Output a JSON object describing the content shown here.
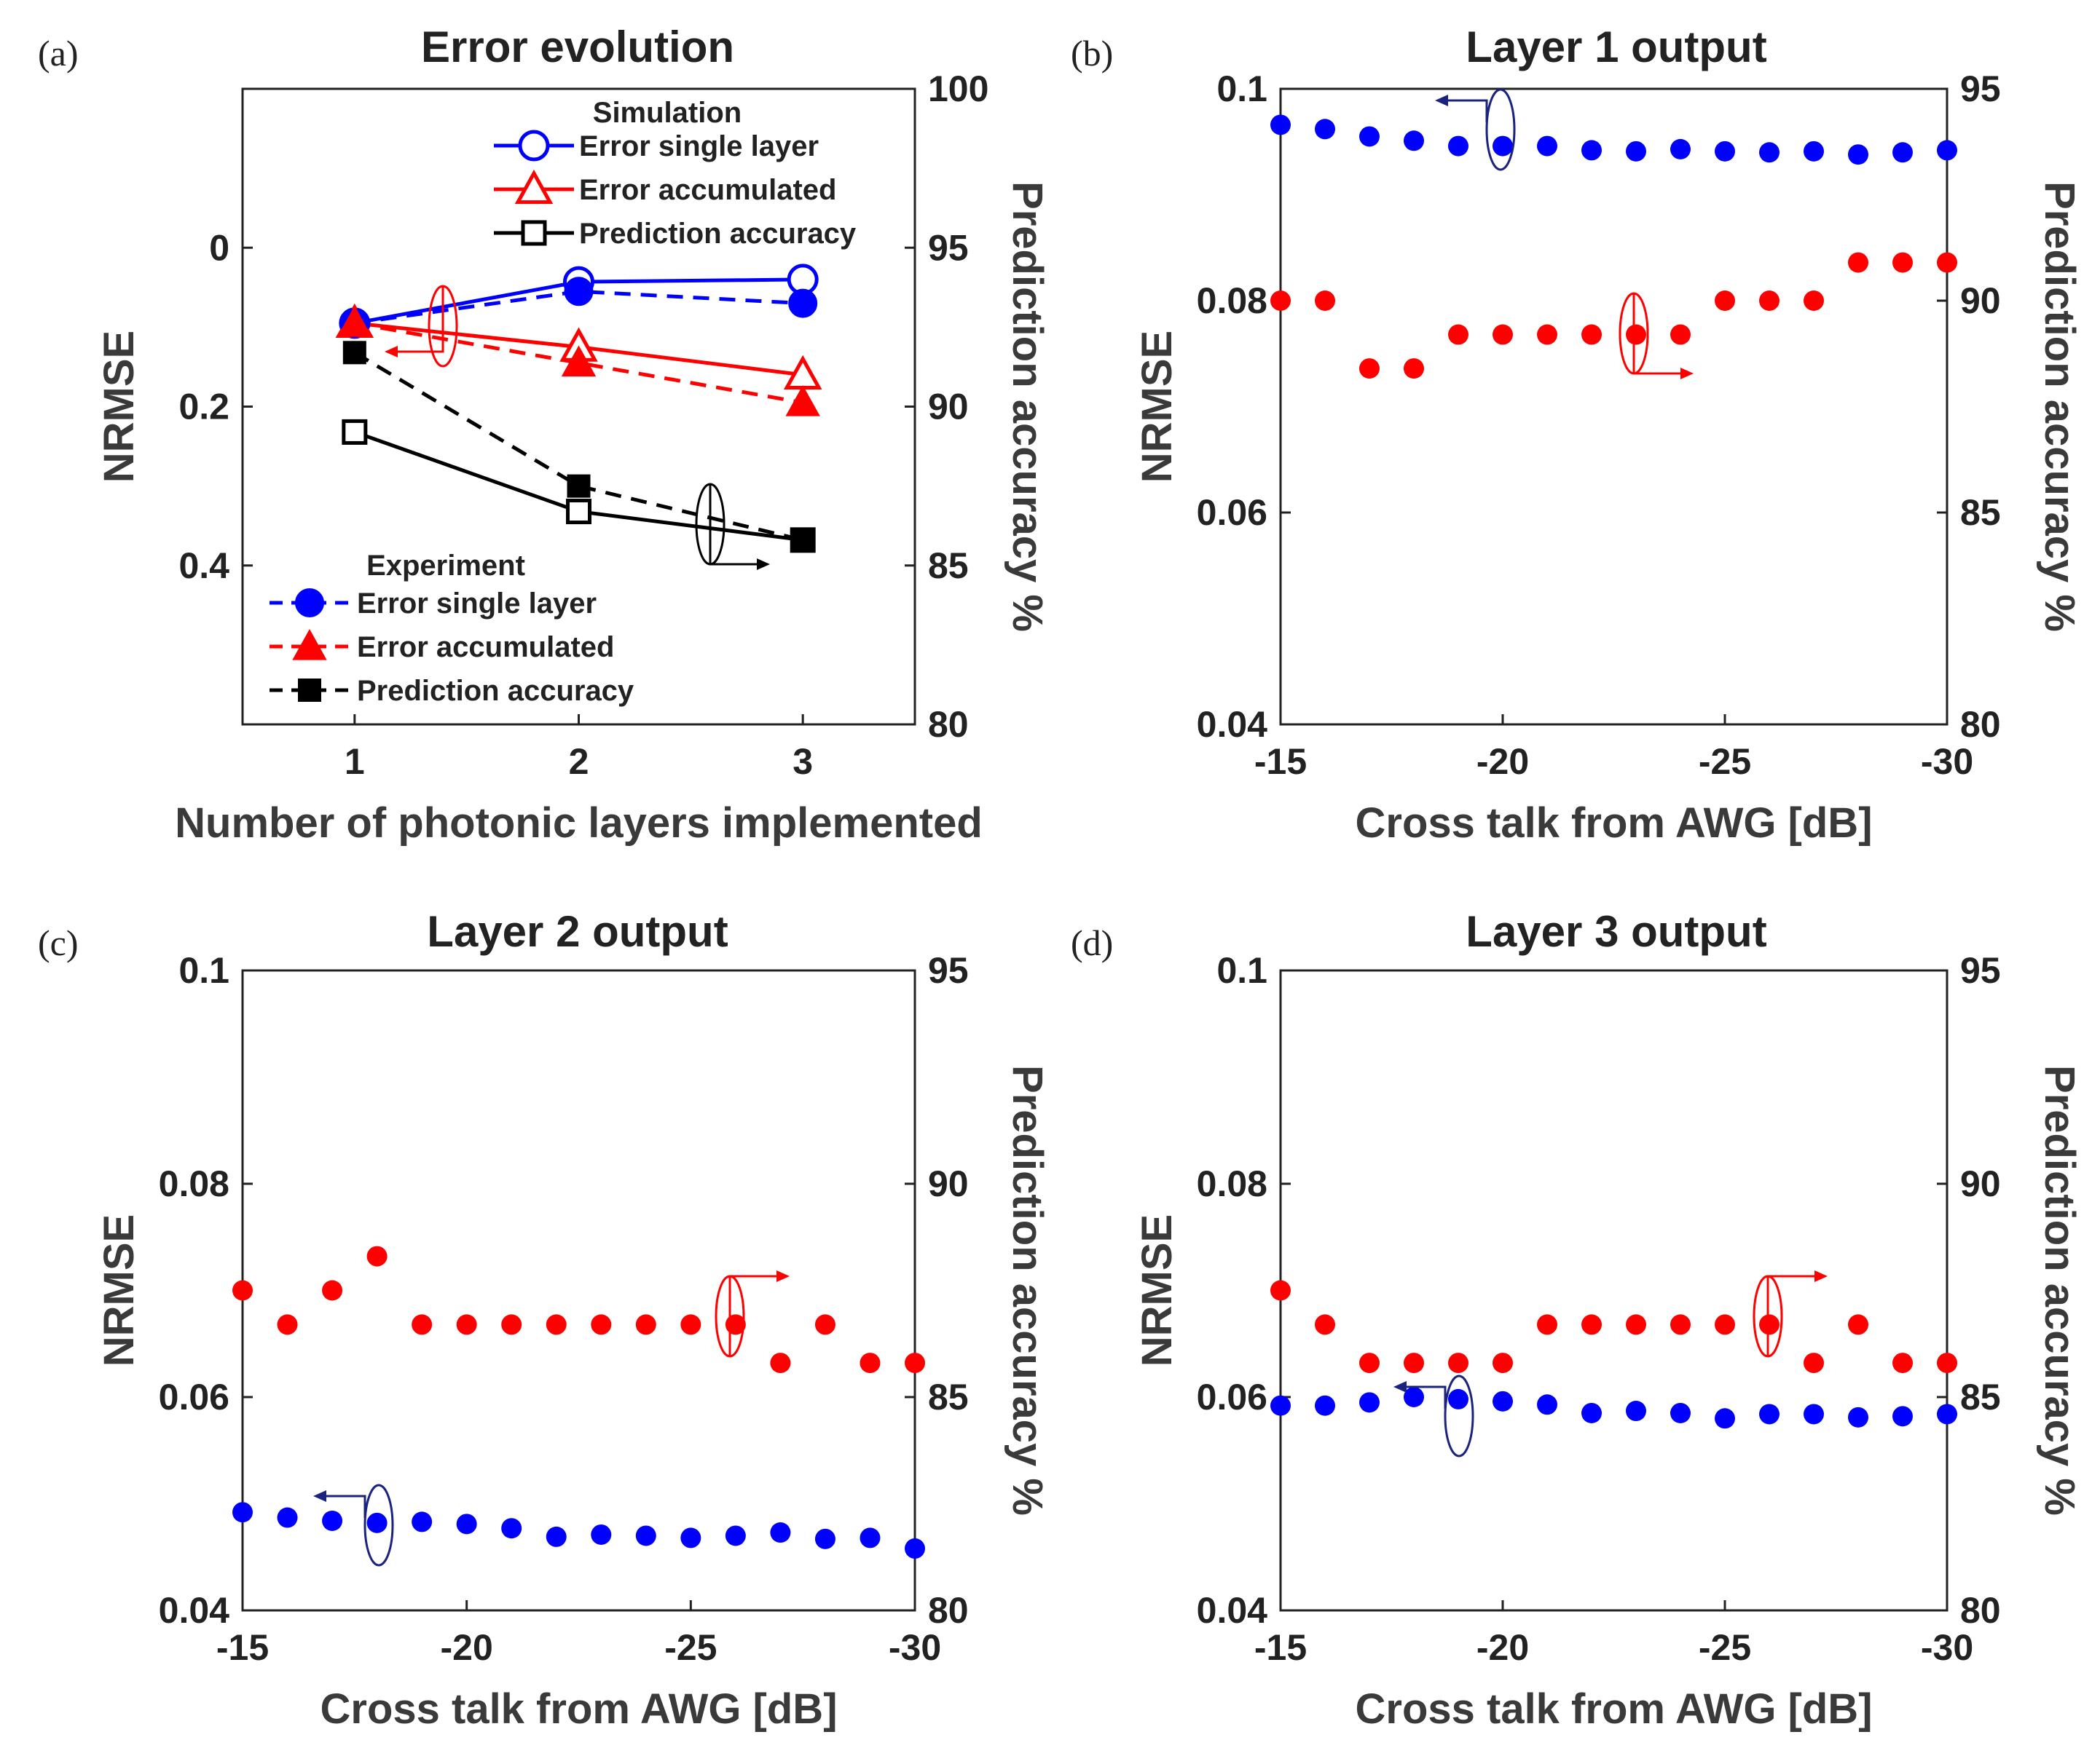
{
  "figure": {
    "panel_labels": [
      "(a)",
      "(b)",
      "(c)",
      "(d)"
    ]
  },
  "colors": {
    "blue": "#0000ff",
    "red": "#ff0000",
    "black": "#000000",
    "navy": "#1a237e",
    "axis": "#222222"
  },
  "chart_data": [
    {
      "id": "a",
      "type": "line",
      "title": "Error evolution",
      "xlabel": "Number of photonic layers implemented",
      "ylabel": "NRMSE",
      "y2label": "Prediction accuracy %",
      "x": [
        1,
        2,
        3
      ],
      "xticks": [
        "1",
        "2",
        "3"
      ],
      "xlim": [
        0.5,
        3.5
      ],
      "ylim": [
        0.6,
        -0.2
      ],
      "yticks": [
        0,
        0.2,
        0.4
      ],
      "yticklabels": [
        "0",
        "0.2",
        "0.4"
      ],
      "y2lim": [
        80,
        100
      ],
      "y2ticks": [
        80,
        85,
        90,
        95,
        100
      ],
      "y2ticklabels": [
        "80",
        "85",
        "90",
        "95",
        "100"
      ],
      "legend_sim_title": "Simulation",
      "legend_exp_title": "Experiment",
      "series": [
        {
          "name": "Error single layer",
          "group": "Simulation",
          "axis": "left",
          "marker": "circle-open",
          "style": "solid",
          "color": "#0000ff",
          "values": [
            0.095,
            0.043,
            0.04
          ]
        },
        {
          "name": "Error accumulated",
          "group": "Simulation",
          "axis": "left",
          "marker": "triangle-open",
          "style": "solid",
          "color": "#ff0000",
          "values": [
            0.095,
            0.125,
            0.16
          ]
        },
        {
          "name": "Prediction accuracy",
          "group": "Simulation",
          "axis": "right",
          "marker": "square-open",
          "style": "solid",
          "color": "#000000",
          "values": [
            89.2,
            86.7,
            85.8
          ]
        },
        {
          "name": "Error single layer",
          "group": "Experiment",
          "axis": "left",
          "marker": "circle-filled",
          "style": "dashed",
          "color": "#0000ff",
          "values": [
            0.095,
            0.055,
            0.07
          ]
        },
        {
          "name": "Error accumulated",
          "group": "Experiment",
          "axis": "left",
          "marker": "triangle-filled",
          "style": "dashed",
          "color": "#ff0000",
          "values": [
            0.095,
            0.145,
            0.195
          ]
        },
        {
          "name": "Prediction accuracy",
          "group": "Experiment",
          "axis": "right",
          "marker": "square-filled",
          "style": "dashed",
          "color": "#000000",
          "values": [
            91.7,
            87.5,
            85.8
          ]
        }
      ]
    },
    {
      "id": "b",
      "type": "scatter",
      "title": "Layer 1 output",
      "xlabel": "Cross talk from AWG [dB]",
      "ylabel": "NRMSE",
      "y2label": "Prediction accuracy %",
      "x": [
        -15,
        -16,
        -17,
        -18,
        -19,
        -20,
        -21,
        -22,
        -23,
        -24,
        -25,
        -26,
        -27,
        -28,
        -29,
        -30
      ],
      "xlim": [
        -15,
        -30
      ],
      "xticks": [
        -15,
        -20,
        -25,
        -30
      ],
      "xticklabels": [
        "-15",
        "-20",
        "-25",
        "-30"
      ],
      "ylim": [
        0.04,
        0.1
      ],
      "yticks": [
        0.04,
        0.06,
        0.08,
        0.1
      ],
      "yticklabels": [
        "0.04",
        "0.06",
        "0.08",
        "0.1"
      ],
      "y2lim": [
        80,
        95
      ],
      "y2ticks": [
        80,
        85,
        90,
        95
      ],
      "y2ticklabels": [
        "80",
        "85",
        "90",
        "95"
      ],
      "series": [
        {
          "name": "NRMSE",
          "axis": "left",
          "color": "#0000ff",
          "values": [
            0.0966,
            0.0962,
            0.0955,
            0.0951,
            0.0946,
            0.0946,
            0.0946,
            0.0942,
            0.0941,
            0.0943,
            0.0941,
            0.094,
            0.0941,
            0.0938,
            0.094,
            0.0942
          ]
        },
        {
          "name": "Prediction accuracy",
          "axis": "right",
          "color": "#ff0000",
          "values": [
            90.0,
            90.0,
            88.4,
            88.4,
            89.2,
            89.2,
            89.2,
            89.2,
            89.2,
            89.2,
            90.0,
            90.0,
            90.0,
            90.9,
            90.9,
            90.9
          ]
        }
      ]
    },
    {
      "id": "c",
      "type": "scatter",
      "title": "Layer 2 output",
      "xlabel": "Cross talk from AWG [dB]",
      "ylabel": "NRMSE",
      "y2label": "Prediction accuracy %",
      "x": [
        -15,
        -16,
        -17,
        -18,
        -19,
        -20,
        -21,
        -22,
        -23,
        -24,
        -25,
        -26,
        -27,
        -28,
        -29,
        -30
      ],
      "xlim": [
        -15,
        -30
      ],
      "xticks": [
        -15,
        -20,
        -25,
        -30
      ],
      "xticklabels": [
        "-15",
        "-20",
        "-25",
        "-30"
      ],
      "ylim": [
        0.04,
        0.1
      ],
      "yticks": [
        0.04,
        0.06,
        0.08,
        0.1
      ],
      "yticklabels": [
        "0.04",
        "0.06",
        "0.08",
        "0.1"
      ],
      "y2lim": [
        80,
        95
      ],
      "y2ticks": [
        80,
        85,
        90,
        95
      ],
      "y2ticklabels": [
        "80",
        "85",
        "90",
        "95"
      ],
      "series": [
        {
          "name": "NRMSE",
          "axis": "left",
          "color": "#0000ff",
          "values": [
            0.0492,
            0.0487,
            0.0484,
            0.0482,
            0.0483,
            0.0481,
            0.0477,
            0.0469,
            0.0471,
            0.047,
            0.0468,
            0.047,
            0.0473,
            0.0467,
            0.0468,
            0.0458
          ]
        },
        {
          "name": "Prediction accuracy",
          "axis": "right",
          "color": "#ff0000",
          "values": [
            87.5,
            86.7,
            87.5,
            88.3,
            86.7,
            86.7,
            86.7,
            86.7,
            86.7,
            86.7,
            86.7,
            86.7,
            85.8,
            86.7,
            85.8,
            85.8
          ]
        }
      ]
    },
    {
      "id": "d",
      "type": "scatter",
      "title": "Layer 3 output",
      "xlabel": "Cross talk from AWG [dB]",
      "ylabel": "NRMSE",
      "y2label": "Prediction accuracy %",
      "x": [
        -15,
        -16,
        -17,
        -18,
        -19,
        -20,
        -21,
        -22,
        -23,
        -24,
        -25,
        -26,
        -27,
        -28,
        -29,
        -30
      ],
      "xlim": [
        -15,
        -30
      ],
      "xticks": [
        -15,
        -20,
        -25,
        -30
      ],
      "xticklabels": [
        "-15",
        "-20",
        "-25",
        "-30"
      ],
      "ylim": [
        0.04,
        0.1
      ],
      "yticks": [
        0.04,
        0.06,
        0.08,
        0.1
      ],
      "yticklabels": [
        "0.04",
        "0.06",
        "0.08",
        "0.1"
      ],
      "y2lim": [
        80,
        95
      ],
      "y2ticks": [
        80,
        85,
        90,
        95
      ],
      "y2ticklabels": [
        "80",
        "85",
        "90",
        "95"
      ],
      "series": [
        {
          "name": "NRMSE",
          "axis": "left",
          "color": "#0000ff",
          "values": [
            0.0592,
            0.0592,
            0.0595,
            0.06,
            0.0598,
            0.0596,
            0.0593,
            0.0585,
            0.0587,
            0.0585,
            0.058,
            0.0584,
            0.0584,
            0.0581,
            0.0582,
            0.0584
          ]
        },
        {
          "name": "Prediction accuracy",
          "axis": "right",
          "color": "#ff0000",
          "values": [
            87.5,
            86.7,
            85.8,
            85.8,
            85.8,
            85.8,
            86.7,
            86.7,
            86.7,
            86.7,
            86.7,
            86.7,
            85.8,
            86.7,
            85.8,
            85.8
          ]
        }
      ]
    }
  ]
}
